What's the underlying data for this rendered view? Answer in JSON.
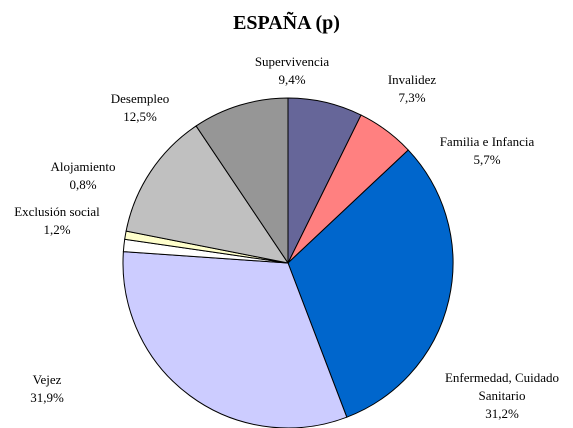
{
  "chart_data": {
    "type": "pie",
    "title": "ESPAÑA (p)",
    "categories": [
      "Invalidez",
      "Familia e Infancia",
      "Enfermedad, Cuidado Sanitario",
      "Vejez",
      "Exclusión social",
      "Alojamiento",
      "Desempleo",
      "Supervivencia"
    ],
    "values": [
      7.3,
      5.7,
      31.2,
      31.9,
      1.2,
      0.8,
      12.5,
      9.4
    ],
    "value_labels": [
      "7,3%",
      "5,7%",
      "31,2%",
      "31,9%",
      "1,2%",
      "0,8%",
      "12,5%",
      "9,4%"
    ],
    "colors": [
      "#666699",
      "#ff8080",
      "#0066cc",
      "#ccccff",
      "#ffffff",
      "#ffffcc",
      "#c0c0c0",
      "#969696"
    ]
  }
}
